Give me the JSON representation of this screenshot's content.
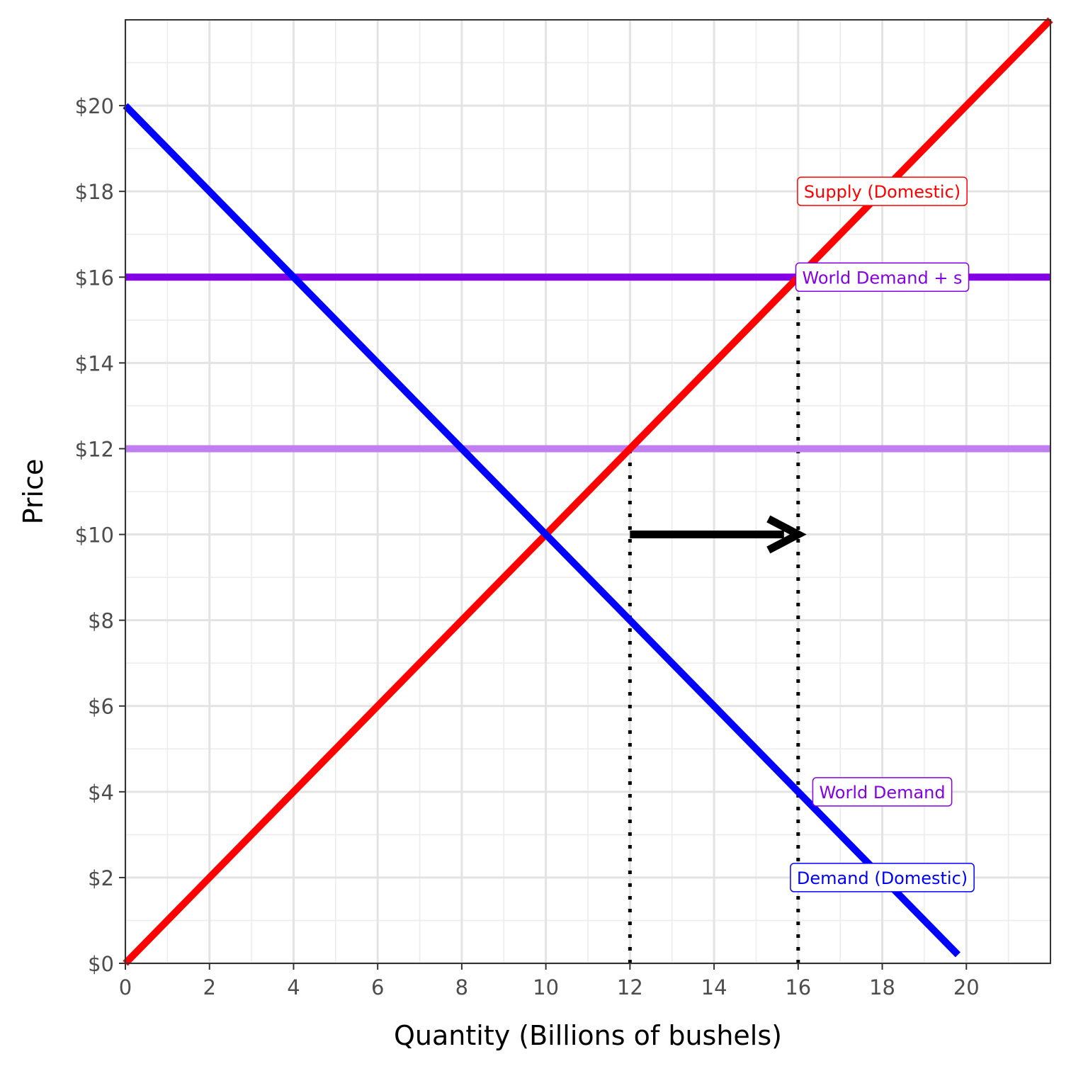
{
  "chart_data": {
    "type": "line",
    "xlabel": "Quantity (Billions of bushels)",
    "ylabel": "Price",
    "xlim": [
      0,
      22
    ],
    "ylim": [
      0,
      22
    ],
    "x_ticks": [
      0,
      2,
      4,
      6,
      8,
      10,
      12,
      14,
      16,
      18,
      20
    ],
    "y_ticks": [
      0,
      2,
      4,
      6,
      8,
      10,
      12,
      14,
      16,
      18,
      20
    ],
    "y_tick_labels": [
      "$0",
      "$2",
      "$4",
      "$6",
      "$8",
      "$10",
      "$12",
      "$14",
      "$16",
      "$18",
      "$20"
    ],
    "grid": true,
    "series": [
      {
        "name": "Supply (Domestic)",
        "color": "#ff0000",
        "x": [
          0,
          22
        ],
        "y": [
          0,
          22
        ]
      },
      {
        "name": "Demand (Domestic)",
        "color": "#0000ff",
        "x": [
          0,
          19.8
        ],
        "y": [
          20,
          0.2
        ]
      },
      {
        "name": "World Demand + s",
        "color": "#8400e5",
        "x": [
          0,
          22
        ],
        "y": [
          16,
          16
        ]
      },
      {
        "name": "World Demand",
        "color": "#c07ef0",
        "x": [
          0,
          22
        ],
        "y": [
          12,
          12
        ]
      }
    ],
    "labels": [
      {
        "text": "Supply (Domestic)",
        "x": 18,
        "y": 18,
        "color": "#ff0000"
      },
      {
        "text": "World Demand + s",
        "x": 18,
        "y": 16,
        "color": "#8400e5"
      },
      {
        "text": "World Demand",
        "x": 18,
        "y": 4,
        "color": "#8400e5"
      },
      {
        "text": "Demand (Domestic)",
        "x": 18,
        "y": 2,
        "color": "#0000ff"
      }
    ],
    "reference_lines": [
      {
        "x": [
          12,
          12
        ],
        "y": [
          0,
          12
        ]
      },
      {
        "x": [
          16,
          16
        ],
        "y": [
          0,
          16
        ]
      }
    ],
    "arrow": {
      "x": [
        12,
        16
      ],
      "y": [
        10,
        10
      ],
      "color": "#000000"
    }
  }
}
